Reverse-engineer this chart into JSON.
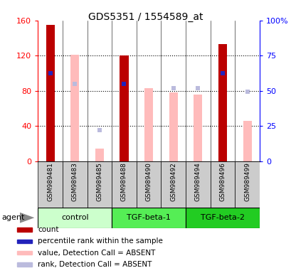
{
  "title": "GDS5351 / 1554589_at",
  "samples": [
    "GSM989481",
    "GSM989483",
    "GSM989485",
    "GSM989488",
    "GSM989490",
    "GSM989492",
    "GSM989494",
    "GSM989496",
    "GSM989499"
  ],
  "count_values": [
    155,
    null,
    null,
    120,
    null,
    null,
    null,
    133,
    null
  ],
  "rank_present": [
    100,
    null,
    null,
    88,
    null,
    null,
    null,
    100,
    null
  ],
  "value_absent": [
    null,
    121,
    14,
    null,
    83,
    78,
    76,
    null,
    46
  ],
  "rank_absent": [
    null,
    88,
    35,
    null,
    null,
    83,
    83,
    null,
    79
  ],
  "left_yticks": [
    0,
    40,
    80,
    120,
    160
  ],
  "right_ytick_labels": [
    "0",
    "25",
    "50",
    "75",
    "100%"
  ],
  "count_color": "#bb0000",
  "rank_present_color": "#2222bb",
  "value_absent_color": "#ffbbbb",
  "rank_absent_color": "#bbbbdd",
  "sample_bg": "#cccccc",
  "group_data": [
    {
      "name": "control",
      "span": [
        0,
        2
      ],
      "color": "#ccffcc"
    },
    {
      "name": "TGF-beta-1",
      "span": [
        3,
        5
      ],
      "color": "#55ee55"
    },
    {
      "name": "TGF-beta-2",
      "span": [
        6,
        8
      ],
      "color": "#22cc22"
    }
  ],
  "legend_items": [
    {
      "color": "#bb0000",
      "label": "count"
    },
    {
      "color": "#2222bb",
      "label": "percentile rank within the sample"
    },
    {
      "color": "#ffbbbb",
      "label": "value, Detection Call = ABSENT"
    },
    {
      "color": "#bbbbdd",
      "label": "rank, Detection Call = ABSENT"
    }
  ]
}
